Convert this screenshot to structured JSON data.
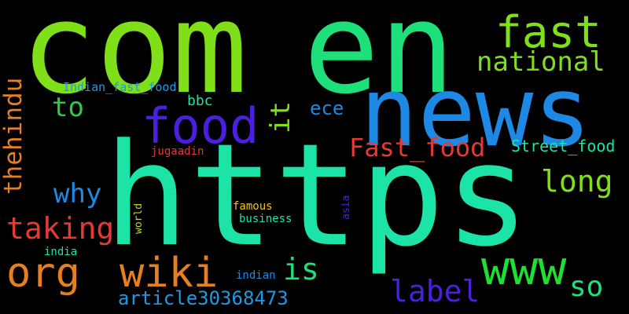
{
  "words": [
    {
      "text": "com",
      "color": "#7FE01A"
    },
    {
      "text": "en",
      "color": "#1EE07A"
    },
    {
      "text": "https",
      "color": "#1CE3A6"
    },
    {
      "text": "news",
      "color": "#1E88E5"
    },
    {
      "text": "food",
      "color": "#4A1FE0"
    },
    {
      "text": "fast",
      "color": "#7FE01A"
    },
    {
      "text": "national",
      "color": "#7FE01A"
    },
    {
      "text": "www",
      "color": "#1EE030"
    },
    {
      "text": "org",
      "color": "#E67E22"
    },
    {
      "text": "wiki",
      "color": "#E67E22"
    },
    {
      "text": "Fast_food",
      "color": "#E53935"
    },
    {
      "text": "thehindu",
      "color": "#E67E22"
    },
    {
      "text": "taking",
      "color": "#E53935"
    },
    {
      "text": "why",
      "color": "#1E88E5"
    },
    {
      "text": "to",
      "color": "#2ECC40"
    },
    {
      "text": "long",
      "color": "#7FE01A"
    },
    {
      "text": "label",
      "color": "#4A1FE0"
    },
    {
      "text": "so",
      "color": "#1EE07A"
    },
    {
      "text": "is",
      "color": "#1EE07A"
    },
    {
      "text": "article30368473",
      "color": "#1E9AE5"
    },
    {
      "text": "it",
      "color": "#7FE01A"
    },
    {
      "text": "ece",
      "color": "#1E88E5"
    },
    {
      "text": "Street_food",
      "color": "#1CE3A6"
    },
    {
      "text": "bbc",
      "color": "#1CE3A6"
    },
    {
      "text": "Indian_fast_food",
      "color": "#1E9AE5"
    },
    {
      "text": "jugaadin",
      "color": "#E53935"
    },
    {
      "text": "famous",
      "color": "#F1C40F"
    },
    {
      "text": "business",
      "color": "#1CE3A6"
    },
    {
      "text": "world",
      "color": "#B5E01A"
    },
    {
      "text": "asia",
      "color": "#4A1FE0"
    },
    {
      "text": "india",
      "color": "#1CE3A6"
    },
    {
      "text": "indian",
      "color": "#1E88E5"
    }
  ]
}
